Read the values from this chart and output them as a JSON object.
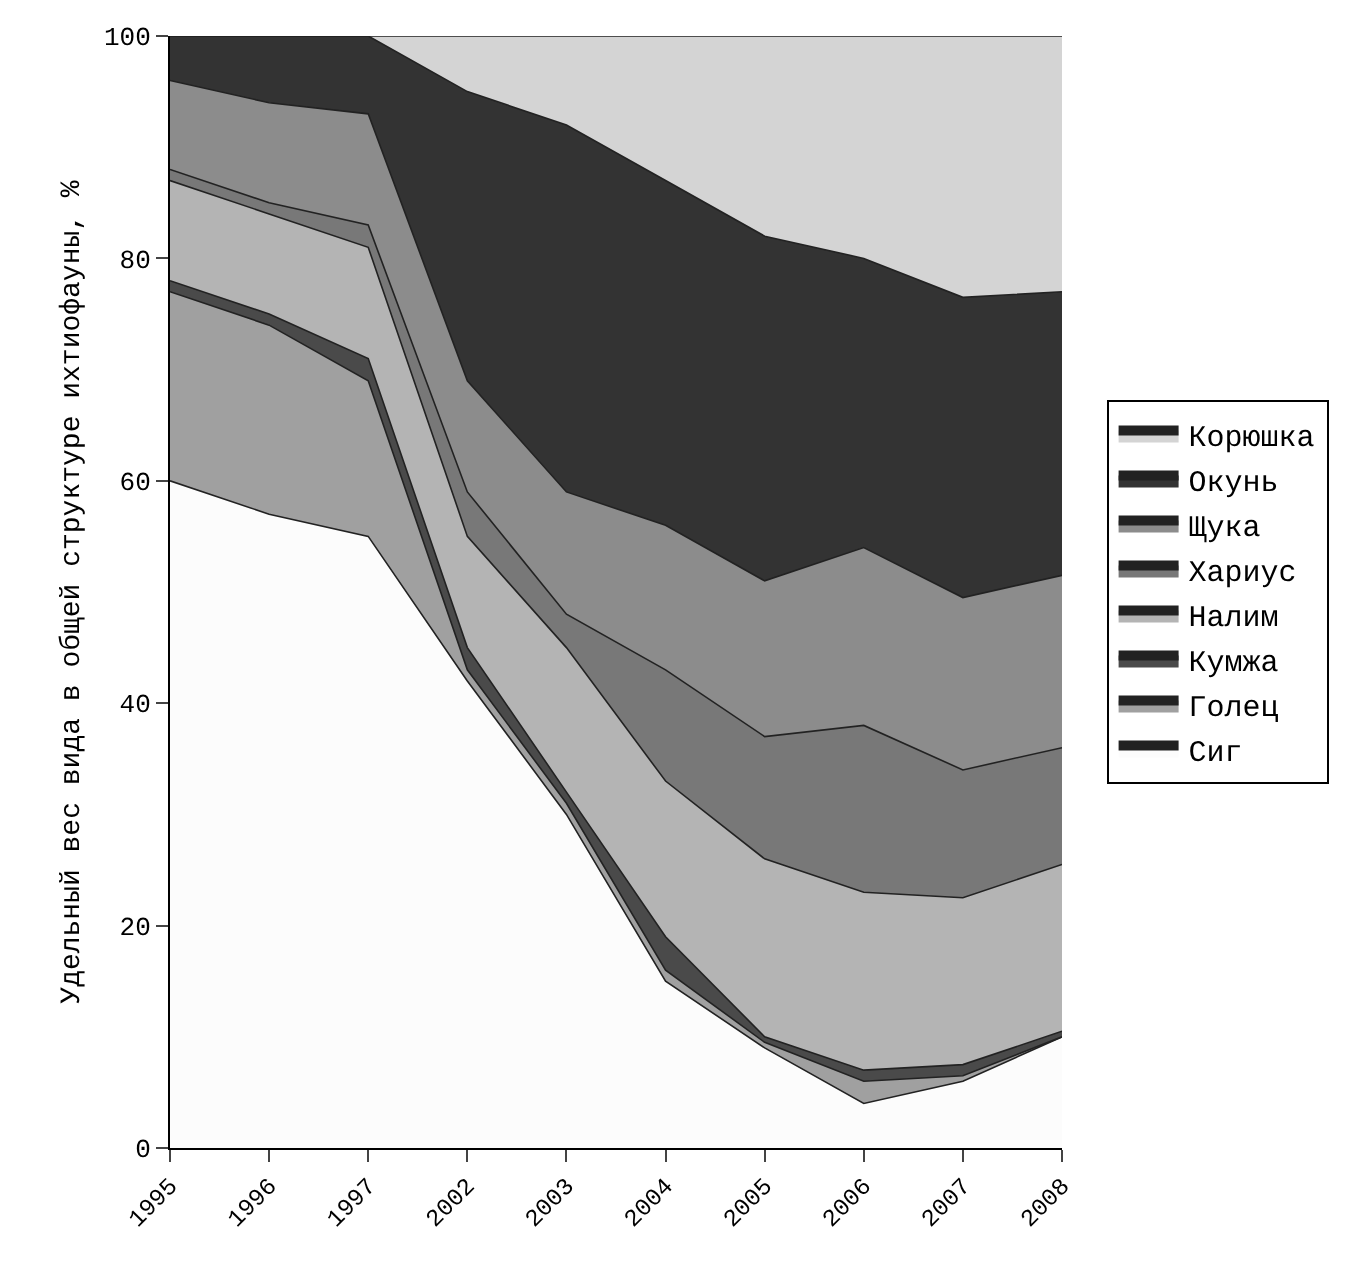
{
  "chart_data": {
    "type": "area",
    "stacked": true,
    "ylabel": "Удельный вес вида в общей структуре ихтиофауны, %",
    "categories": [
      "1995",
      "1996",
      "1997",
      "2002",
      "2003",
      "2004",
      "2005",
      "2006",
      "2007",
      "2008"
    ],
    "ylim": [
      0,
      100
    ],
    "yticks": [
      0,
      20,
      40,
      60,
      80,
      100
    ],
    "legend": "right",
    "series": [
      {
        "name": "Сиг",
        "color": "#fcfcfc",
        "values": [
          60,
          57,
          55,
          42,
          30,
          15,
          9,
          4,
          6,
          10
        ]
      },
      {
        "name": "Голец",
        "color": "#a0a0a0",
        "values": [
          17,
          17,
          14,
          1,
          1,
          1,
          0.5,
          2,
          0.5,
          0
        ]
      },
      {
        "name": "Кумжа",
        "color": "#4a4a4a",
        "values": [
          1,
          1,
          2,
          2,
          1,
          3,
          0.5,
          1,
          1,
          0.5
        ]
      },
      {
        "name": "Налим",
        "color": "#b4b4b4",
        "values": [
          9,
          9,
          10,
          10,
          13,
          14,
          16,
          16,
          15,
          15
        ]
      },
      {
        "name": "Хариус",
        "color": "#787878",
        "values": [
          1,
          1,
          2,
          4,
          3,
          10,
          11,
          15,
          11.5,
          10.5
        ]
      },
      {
        "name": "Щука",
        "color": "#8c8c8c",
        "values": [
          8,
          9,
          10,
          10,
          11,
          13,
          14,
          16,
          15.5,
          15.5
        ]
      },
      {
        "name": "Окунь",
        "color": "#333333",
        "values": [
          4,
          6,
          7,
          26,
          33,
          31,
          31,
          26,
          27,
          25.5
        ]
      },
      {
        "name": "Корюшка",
        "color": "#d4d4d4",
        "values": [
          0,
          0,
          0,
          5,
          8,
          13,
          18,
          20,
          23.5,
          23
        ]
      }
    ]
  }
}
